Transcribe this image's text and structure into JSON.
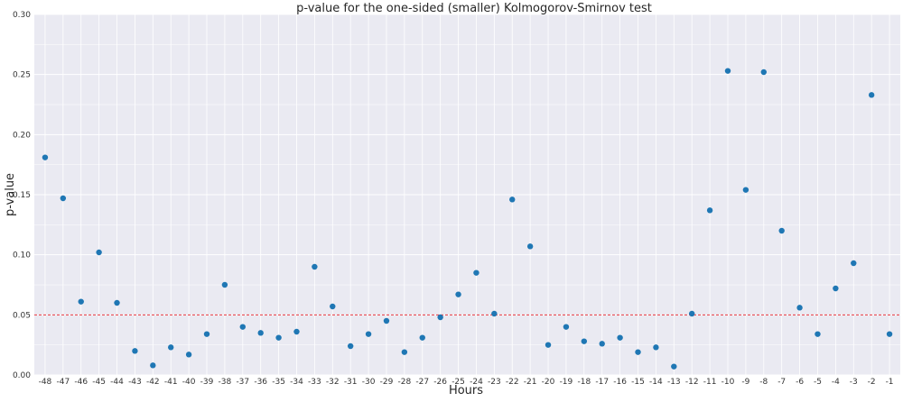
{
  "chart_data": {
    "type": "scatter",
    "title": "p-value for the one-sided (smaller) Kolmogorov-Smirnov test",
    "xlabel": "Hours",
    "ylabel": "p-value",
    "x": [
      -48,
      -47,
      -46,
      -45,
      -44,
      -43,
      -42,
      -41,
      -40,
      -39,
      -38,
      -37,
      -36,
      -35,
      -34,
      -33,
      -32,
      -31,
      -30,
      -29,
      -28,
      -27,
      -26,
      -25,
      -24,
      -23,
      -22,
      -21,
      -20,
      -19,
      -18,
      -17,
      -16,
      -15,
      -14,
      -13,
      -12,
      -11,
      -10,
      -9,
      -8,
      -7,
      -6,
      -5,
      -4,
      -3,
      -2,
      -1
    ],
    "x_tick_labels": [
      "-48",
      "-47",
      "-46",
      "-45",
      "-44",
      "-43",
      "-42",
      "-41",
      "-40",
      "-39",
      "-38",
      "-37",
      "-36",
      "-35",
      "-34",
      "-33",
      "-32",
      "-31",
      "-30",
      "-29",
      "-28",
      "-27",
      "-26",
      "-25",
      "-24",
      "-23",
      "-22",
      "-21",
      "-20",
      "-19",
      "-18",
      "-17",
      "-16",
      "-15",
      "-14",
      "-13",
      "-12",
      "-11",
      "-10",
      "-9",
      "-8",
      "-7",
      "-6",
      "-5",
      "-4",
      "-3",
      "-2",
      "-1"
    ],
    "y": [
      0.181,
      0.147,
      0.061,
      0.102,
      0.06,
      0.02,
      0.008,
      0.023,
      0.017,
      0.034,
      0.075,
      0.04,
      0.035,
      0.031,
      0.036,
      0.09,
      0.057,
      0.024,
      0.034,
      0.045,
      0.019,
      0.031,
      0.048,
      0.067,
      0.085,
      0.051,
      0.146,
      0.107,
      0.025,
      0.04,
      0.028,
      0.026,
      0.031,
      0.019,
      0.023,
      0.007,
      0.051,
      0.137,
      0.253,
      0.154,
      0.252,
      0.12,
      0.056,
      0.034,
      0.072,
      0.093,
      0.233,
      0.034
    ],
    "ylim": [
      0,
      0.3
    ],
    "y_ticks": [
      0.0,
      0.05,
      0.1,
      0.15,
      0.2,
      0.25,
      0.3
    ],
    "y_tick_labels": [
      "0.00",
      "0.05",
      "0.10",
      "0.15",
      "0.20",
      "0.25",
      "0.30"
    ],
    "reference_line": {
      "y": 0.05,
      "style": "dashed"
    },
    "grid": true,
    "colors": {
      "point": "#1f77b4",
      "reference_line": "#e8363c",
      "background": "#eaeaf2",
      "grid": "#ffffff"
    }
  }
}
